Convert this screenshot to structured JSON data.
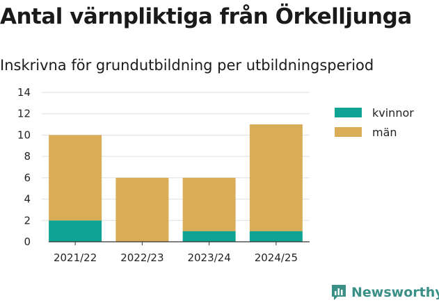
{
  "header": {
    "title": "Antal värnpliktiga från Örkelljunga",
    "subtitle": "Inskrivna för grundutbildning per utbildningsperiod"
  },
  "brand": {
    "name": "Newsworthy",
    "icon": "bar-chart-logo-icon",
    "color": "#3a8f86"
  },
  "chart_data": {
    "type": "bar",
    "stacked": true,
    "categories": [
      "2021/22",
      "2022/23",
      "2023/24",
      "2024/25"
    ],
    "series": [
      {
        "name": "kvinnor",
        "values": [
          2,
          0,
          1,
          1
        ],
        "color": "#0fa394"
      },
      {
        "name": "män",
        "values": [
          8,
          6,
          5,
          10
        ],
        "color": "#d9ac57"
      }
    ],
    "ylim": [
      0,
      14
    ],
    "yticks": [
      0,
      2,
      4,
      6,
      8,
      10,
      12,
      14
    ],
    "grid": true,
    "legend": "right"
  }
}
